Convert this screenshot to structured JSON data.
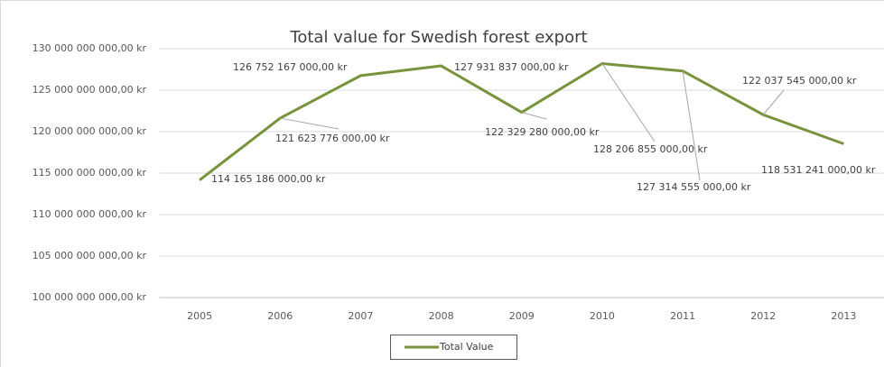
{
  "chart_data": {
    "type": "line",
    "title": "Total value for Swedish forest export",
    "categories": [
      "2005",
      "2006",
      "2007",
      "2008",
      "2009",
      "2010",
      "2011",
      "2012",
      "2013"
    ],
    "series": [
      {
        "name": "Total Value",
        "color": "#77933c",
        "values": [
          114165186000,
          121623776000,
          126752167000,
          127931837000,
          122329280000,
          128206855000,
          127314555000,
          122037545000,
          118531241000
        ],
        "value_labels": [
          "114 165 186 000,00 kr",
          "121 623 776 000,00 kr",
          "126 752 167 000,00 kr",
          "127 931 837 000,00 kr",
          "122 329 280 000,00 kr",
          "128 206 855 000,00 kr",
          "127 314 555 000,00 kr",
          "122 037 545 000,00 kr",
          "118 531 241 000,00 kr"
        ]
      }
    ],
    "ylim": [
      100000000000,
      130000000000
    ],
    "yticks": [
      {
        "value": 100000000000,
        "label": "100 000 000 000,00 kr"
      },
      {
        "value": 105000000000,
        "label": "105 000 000 000,00 kr"
      },
      {
        "value": 110000000000,
        "label": "110 000 000 000,00 kr"
      },
      {
        "value": 115000000000,
        "label": "115 000 000 000,00 kr"
      },
      {
        "value": 120000000000,
        "label": "120 000 000 000,00 kr"
      },
      {
        "value": 125000000000,
        "label": "125 000 000 000,00 kr"
      },
      {
        "value": 130000000000,
        "label": "130 000 000 000,00 kr"
      }
    ],
    "grid": true,
    "legend": "bottom"
  }
}
